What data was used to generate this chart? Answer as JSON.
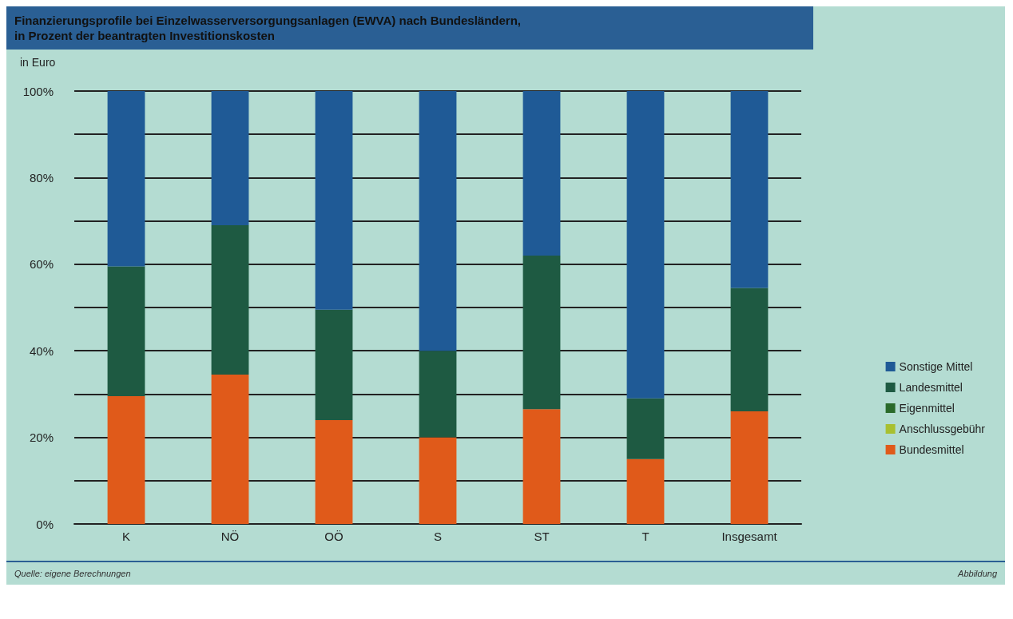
{
  "chart_data": {
    "type": "bar",
    "stacked": true,
    "title": "Finanzierungsprofile bei Einzelwasserversorgungsanlagen (EWVA) nach Bundesländern,\nin Prozent der beantragten Investitionskosten",
    "ylabel": "in Euro",
    "categories": [
      "K",
      "NÖ",
      "OÖ",
      "S",
      "ST",
      "T",
      "Insgesamt"
    ],
    "series": [
      {
        "name": "Bundesmittel",
        "color": "#e05a1a",
        "values": [
          29.5,
          34.5,
          24,
          20,
          26.5,
          15,
          26
        ]
      },
      {
        "name": "Anschlussgebühr",
        "color": "#a8c030",
        "values": [
          0,
          0,
          0,
          0,
          0,
          0,
          0
        ]
      },
      {
        "name": "Eigenmittel",
        "color": "#2a6a2a",
        "values": [
          0,
          0,
          0,
          0,
          0,
          0,
          0
        ]
      },
      {
        "name": "Landesmittel",
        "color": "#1e5a42",
        "values": [
          30,
          34.5,
          25.5,
          20,
          35.5,
          14,
          28.5
        ]
      },
      {
        "name": "Sonstige Mittel",
        "color": "#1f5a96",
        "values": [
          40.5,
          31,
          50.5,
          60,
          38,
          71,
          45.5
        ]
      }
    ],
    "ylim": [
      0,
      100
    ],
    "yticks": [
      {
        "value": 0,
        "label": "0%"
      },
      {
        "value": 10,
        "label": null
      },
      {
        "value": 20,
        "label": "20%"
      },
      {
        "value": 30,
        "label": null
      },
      {
        "value": 40,
        "label": "40%"
      },
      {
        "value": 50,
        "label": null
      },
      {
        "value": 60,
        "label": "60%"
      },
      {
        "value": 70,
        "label": null
      },
      {
        "value": 80,
        "label": "80%"
      },
      {
        "value": 90,
        "label": null
      },
      {
        "value": 100,
        "label": "100%"
      }
    ],
    "grid": "y",
    "legend": "right",
    "annotations": [
      "Quelle: eigene Berechnungen",
      "Abbildung"
    ]
  }
}
